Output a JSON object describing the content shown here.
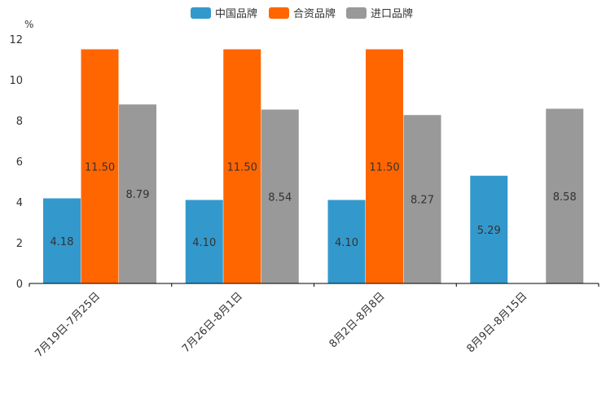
{
  "chart_data": {
    "type": "bar",
    "unit": "%",
    "categories": [
      "7月19日-7月25日",
      "7月26日-8月1日",
      "8月2日-8月8日",
      "8月9日-8月15日"
    ],
    "series": [
      {
        "name": "中国品牌",
        "color": "#3399cc",
        "values": [
          4.18,
          4.1,
          4.1,
          5.29
        ],
        "labels": [
          "4.18",
          "4.10",
          "4.10",
          "5.29"
        ]
      },
      {
        "name": "合资品牌",
        "color": "#ff6600",
        "values": [
          11.5,
          11.5,
          11.5,
          null
        ],
        "labels": [
          "11.50",
          "11.50",
          "11.50",
          ""
        ]
      },
      {
        "name": "进口品牌",
        "color": "#999999",
        "values": [
          8.79,
          8.54,
          8.27,
          8.58
        ],
        "labels": [
          "8.79",
          "8.54",
          "8.27",
          "8.58"
        ]
      }
    ],
    "yticks": [
      "0",
      "2",
      "4",
      "6",
      "8",
      "10",
      "12"
    ],
    "ylim": [
      0,
      12
    ],
    "legend_position": "top-center",
    "grid": false
  }
}
